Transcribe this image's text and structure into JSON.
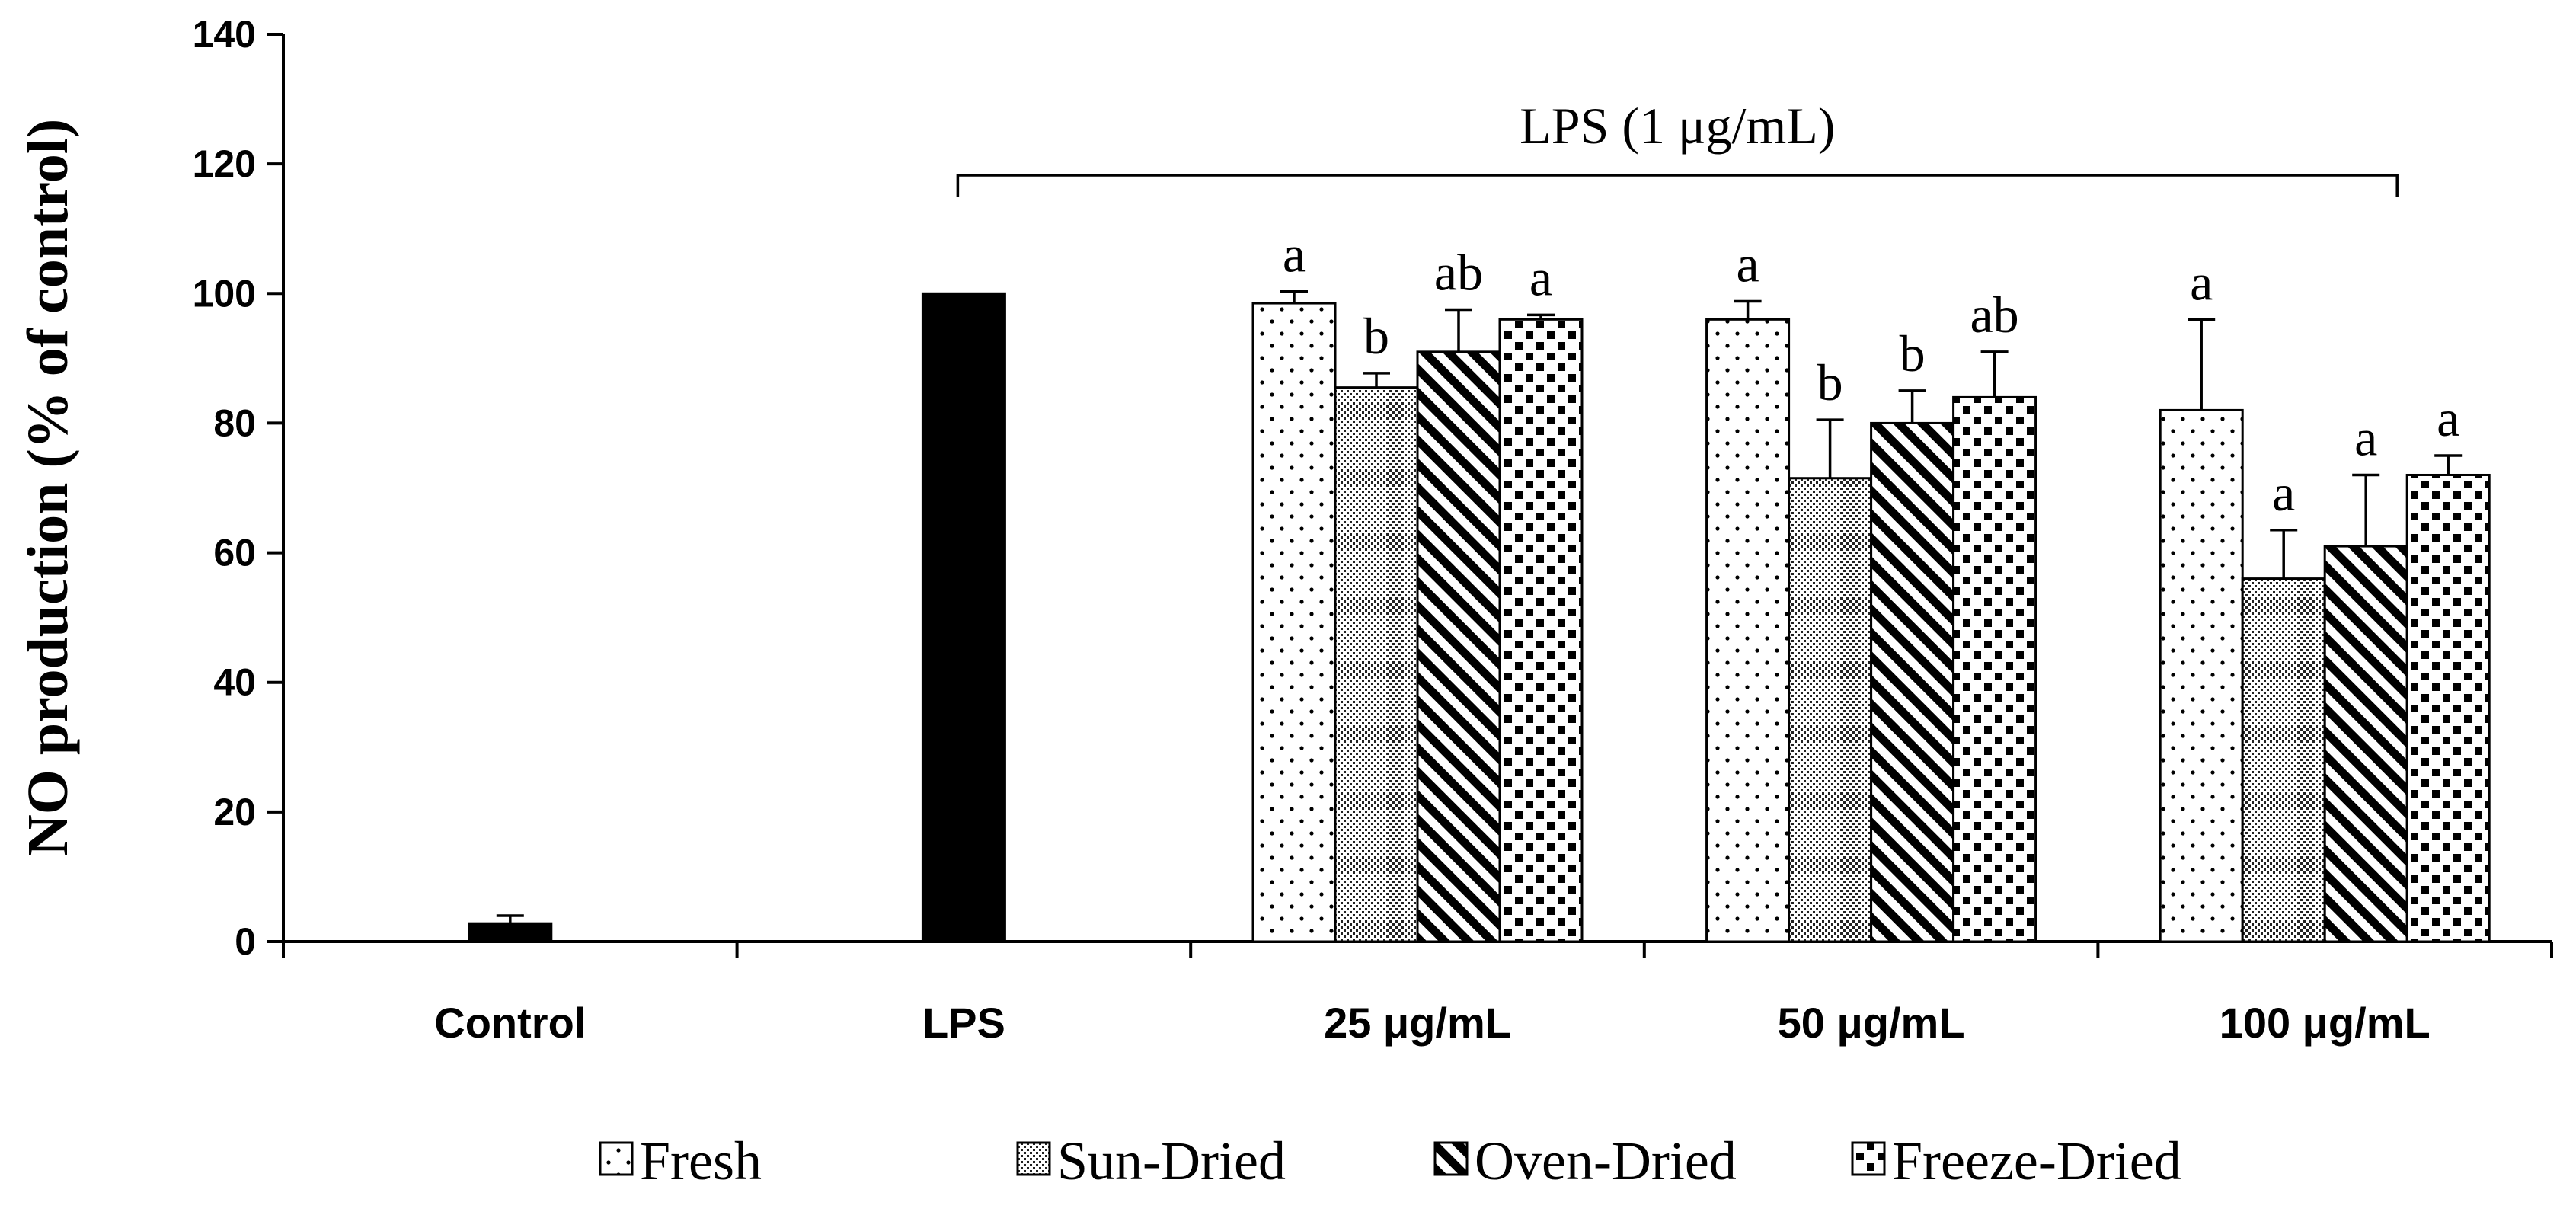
{
  "chart_data": {
    "type": "bar",
    "title": "",
    "xlabel": "",
    "ylabel": "NO production (% of control)",
    "ylim": [
      0,
      140
    ],
    "yticks": [
      0,
      20,
      40,
      60,
      80,
      100,
      120,
      140
    ],
    "annotation": "LPS (1 μg/mL)",
    "bracket_groups": [
      "LPS",
      "100 μg/mL"
    ],
    "controls": [
      {
        "category": "Control",
        "name": "Control",
        "value": 2.8,
        "error": 1.2
      },
      {
        "category": "LPS",
        "name": "LPS",
        "value": 100,
        "error": 0
      }
    ],
    "categories": [
      "Control",
      "LPS",
      "25 μg/mL",
      "50 μg/mL",
      "100 μg/mL"
    ],
    "series": [
      {
        "name": "Fresh",
        "pattern": "dots",
        "values": [
          null,
          null,
          98.5,
          96,
          82
        ],
        "errors": [
          null,
          null,
          1.8,
          2.8,
          14
        ],
        "labels": [
          null,
          null,
          "a",
          "a",
          "a"
        ]
      },
      {
        "name": "Sun-Dried",
        "pattern": "fine",
        "values": [
          null,
          null,
          85.5,
          71.5,
          56
        ],
        "errors": [
          null,
          null,
          2.2,
          9,
          7.5
        ],
        "labels": [
          null,
          null,
          "b",
          "b",
          "a"
        ]
      },
      {
        "name": "Oven-Dried",
        "pattern": "hatch",
        "values": [
          null,
          null,
          91,
          80,
          61
        ],
        "errors": [
          null,
          null,
          6.5,
          5,
          11
        ],
        "labels": [
          null,
          null,
          "ab",
          "b",
          "a"
        ]
      },
      {
        "name": "Freeze-Dried",
        "pattern": "checker",
        "values": [
          null,
          null,
          96,
          84,
          72
        ],
        "errors": [
          null,
          null,
          0.7,
          7,
          3
        ],
        "labels": [
          null,
          null,
          "a",
          "ab",
          "a"
        ]
      }
    ],
    "legend": [
      "Fresh",
      "Sun-Dried",
      "Oven-Dried",
      "Freeze-Dried"
    ],
    "legend_position": "bottom"
  }
}
